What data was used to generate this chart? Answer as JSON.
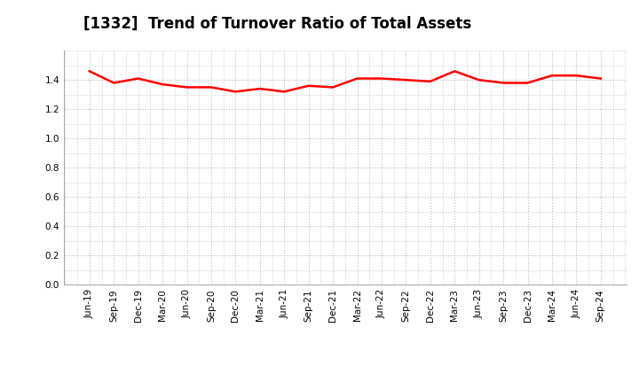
{
  "title": "[1332]  Trend of Turnover Ratio of Total Assets",
  "x_labels": [
    "Jun-19",
    "Sep-19",
    "Dec-19",
    "Mar-20",
    "Jun-20",
    "Sep-20",
    "Dec-20",
    "Mar-21",
    "Jun-21",
    "Sep-21",
    "Dec-21",
    "Mar-22",
    "Jun-22",
    "Sep-22",
    "Dec-22",
    "Mar-23",
    "Jun-23",
    "Sep-23",
    "Dec-23",
    "Mar-24",
    "Jun-24",
    "Sep-24"
  ],
  "values": [
    1.46,
    1.38,
    1.41,
    1.37,
    1.35,
    1.35,
    1.32,
    1.34,
    1.32,
    1.36,
    1.35,
    1.41,
    1.41,
    1.4,
    1.39,
    1.46,
    1.4,
    1.38,
    1.38,
    1.43,
    1.43,
    1.41
  ],
  "line_color": "#ff0000",
  "line_width": 1.8,
  "ylim": [
    0.0,
    1.6
  ],
  "yticks": [
    0.0,
    0.2,
    0.4,
    0.6,
    0.8,
    1.0,
    1.2,
    1.4
  ],
  "bg_color": "#ffffff",
  "plot_bg_color": "#ffffff",
  "grid_color": "#bbbbbb",
  "title_fontsize": 12,
  "tick_fontsize": 7.5
}
